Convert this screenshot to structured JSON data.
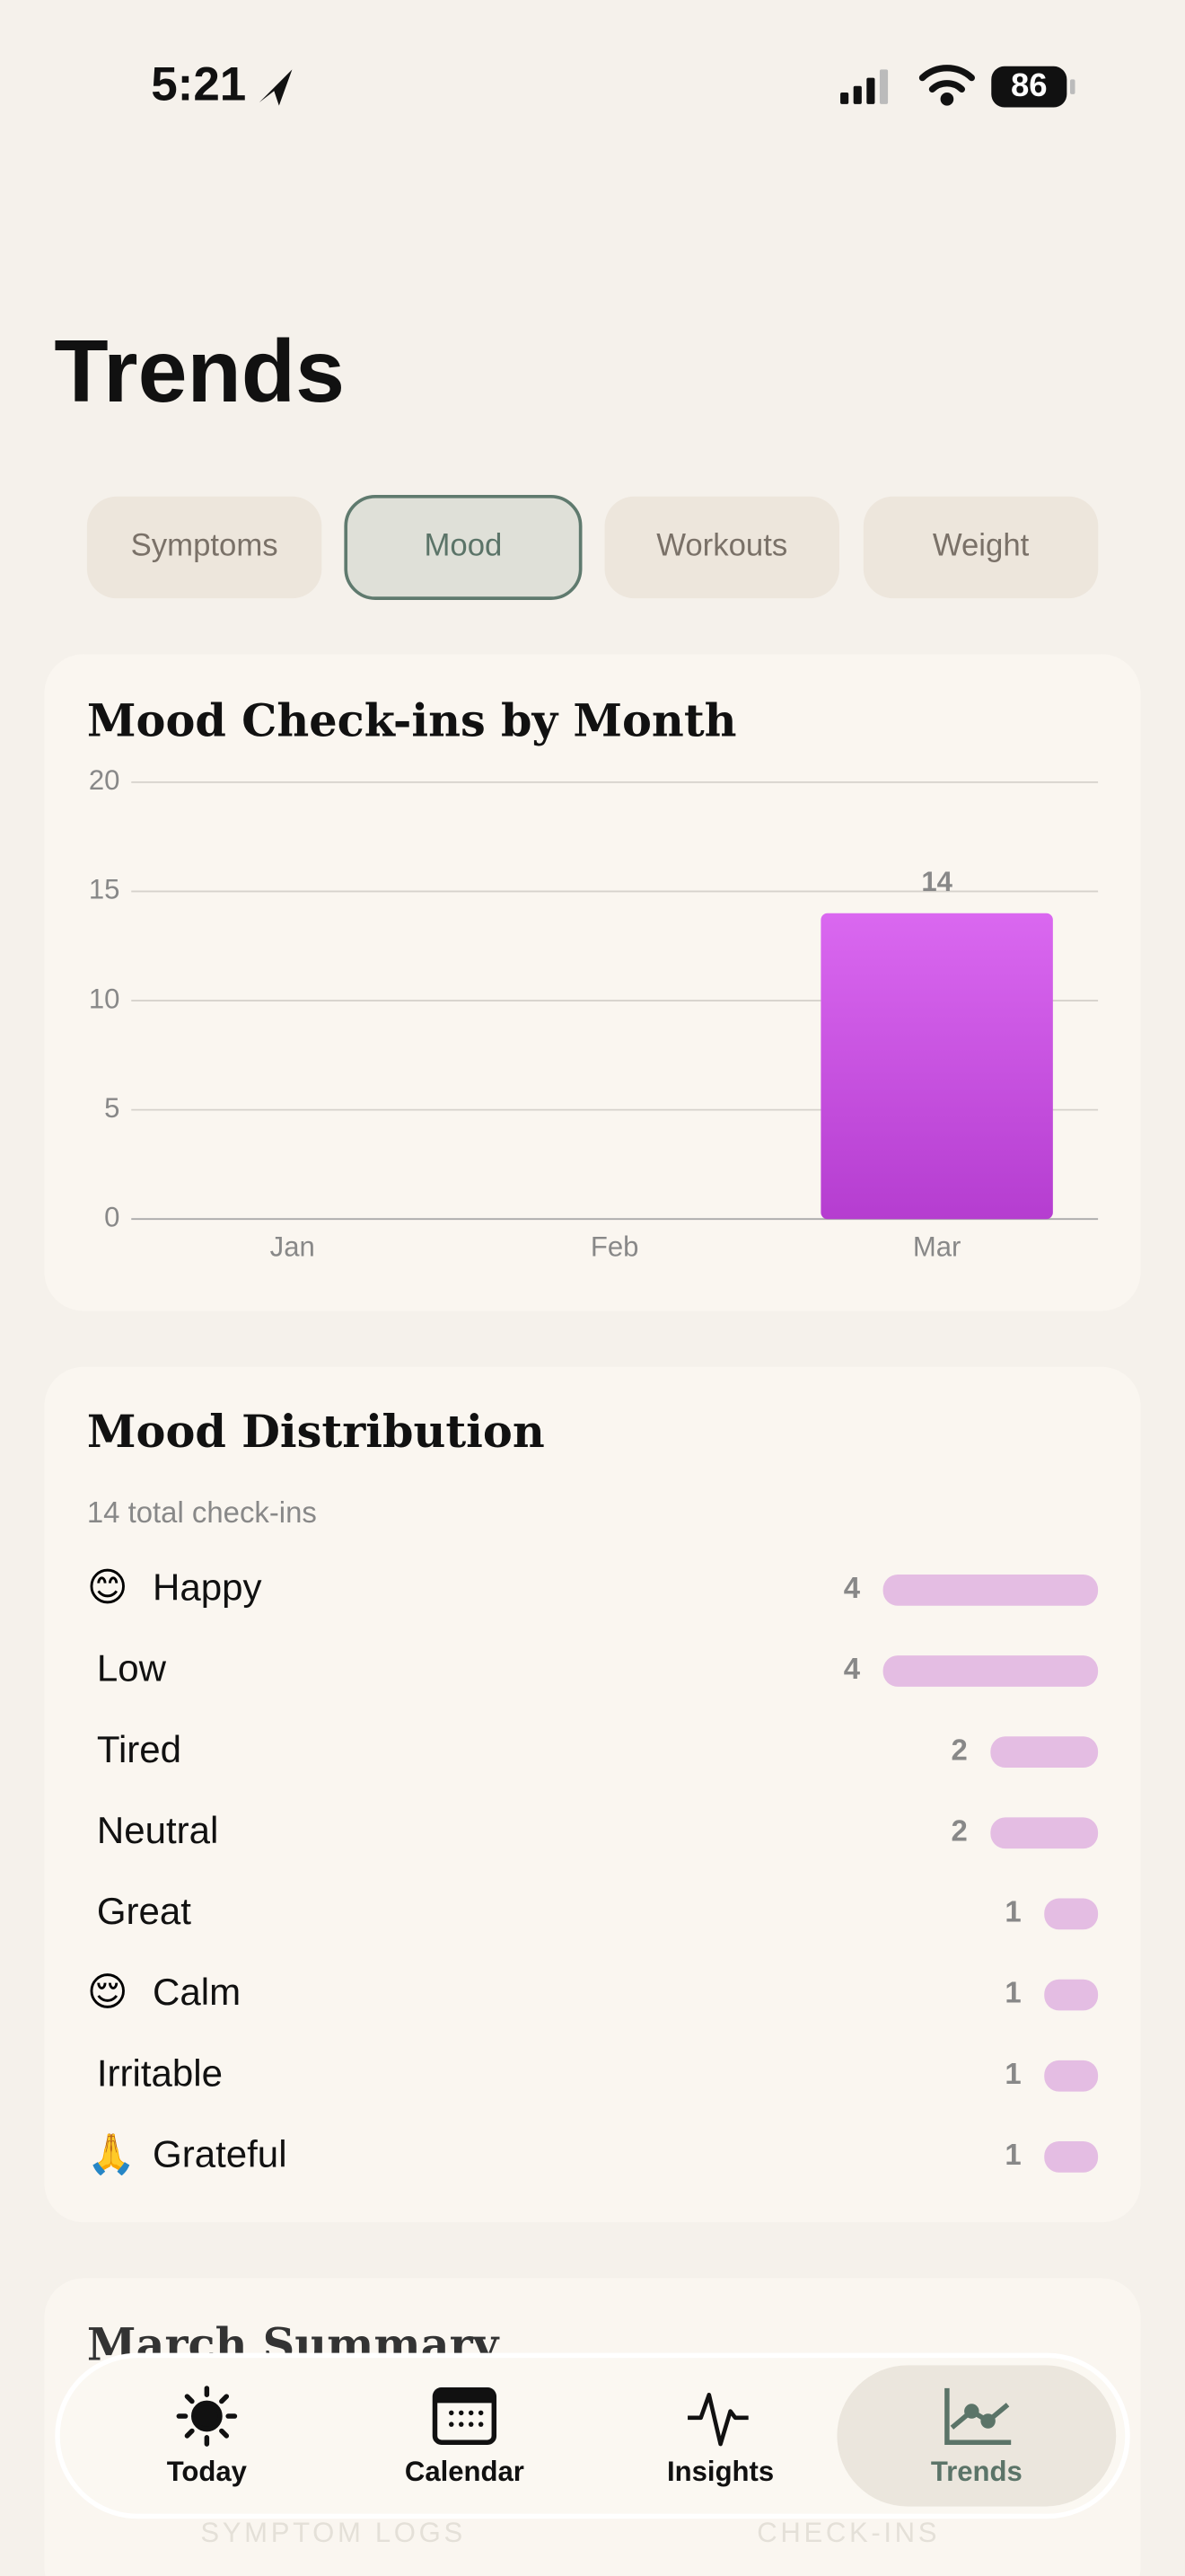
{
  "status_bar": {
    "time": "5:21",
    "battery": "86"
  },
  "header": {
    "title": "Trends"
  },
  "tabs": [
    "Symptoms",
    "Mood",
    "Workouts",
    "Weight"
  ],
  "chart_data": [
    {
      "type": "bar",
      "title": "Mood Check-ins by Month",
      "categories": [
        "Jan",
        "Feb",
        "Mar"
      ],
      "values": [
        0,
        0,
        14
      ],
      "color": "#c94ee0",
      "ylim": [
        0,
        20
      ],
      "yticks": [
        0,
        5,
        10,
        15,
        20
      ],
      "grid": true
    },
    {
      "type": "hbar",
      "title": "Mood Distribution",
      "subtitle": "14 total check-ins",
      "categories": [
        "Happy",
        "Low",
        "Tired",
        "Neutral",
        "Great",
        "Calm",
        "Irritable",
        "Grateful"
      ],
      "emojis": [
        "😊",
        null,
        null,
        null,
        null,
        "😌",
        null,
        "🙏"
      ],
      "values": [
        4,
        4,
        2,
        2,
        1,
        1,
        1,
        1
      ],
      "color": "#e4bde3"
    }
  ],
  "summary": {
    "title": "March Summary",
    "labels": [
      "SYMPTOM LOGS",
      "CHECK-INS"
    ]
  },
  "nav": [
    "Today",
    "Calendar",
    "Insights",
    "Trends"
  ]
}
